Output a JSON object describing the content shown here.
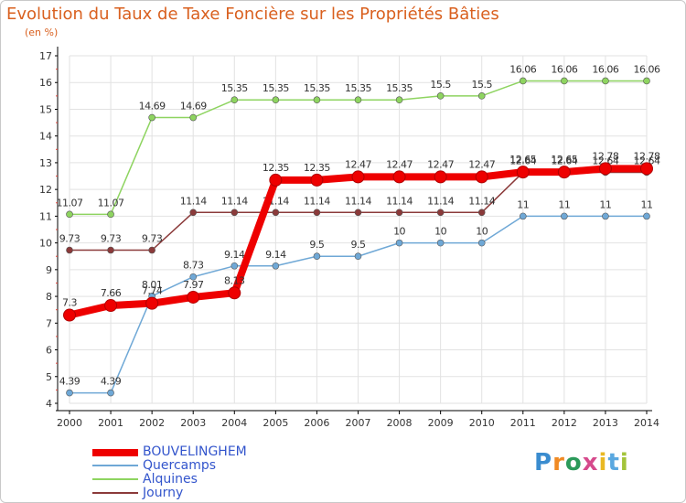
{
  "title": "Evolution du Taux de Taxe Foncière sur les Propriétés Bâties",
  "unit_label": "(en %)",
  "chart_data": {
    "type": "line",
    "title": "Evolution du Taux de Taxe Foncière sur les Propriétés Bâties",
    "ylabel": "(en %)",
    "xlabel": "",
    "ylim": [
      4,
      17
    ],
    "yticks": [
      "4",
      "5",
      "6",
      "7",
      "8",
      "9",
      "10",
      "11",
      "12",
      "13",
      "14",
      "15",
      "16",
      "17"
    ],
    "categories": [
      "2000",
      "2001",
      "2002",
      "2003",
      "2004",
      "2005",
      "2006",
      "2007",
      "2008",
      "2009",
      "2010",
      "2011",
      "2012",
      "2013",
      "2014"
    ],
    "grid": true,
    "series": [
      {
        "name": "Alquines",
        "color": "#8ed460",
        "values": [
          11.07,
          11.07,
          14.69,
          14.69,
          15.35,
          15.35,
          15.35,
          15.35,
          15.35,
          15.5,
          15.5,
          16.06,
          16.06,
          16.06,
          16.06
        ],
        "labels": [
          "11.07",
          "11.07",
          "14.69",
          "14.69",
          "15.35",
          "15.35",
          "15.35",
          "15.35",
          "15.35",
          "15.5",
          "15.5",
          "16.06",
          "16.06",
          "16.06",
          "16.06"
        ]
      },
      {
        "name": "Quercamps",
        "color": "#6fa8d6",
        "values": [
          4.39,
          4.39,
          8.01,
          8.73,
          9.14,
          9.14,
          9.5,
          9.5,
          10,
          10,
          10,
          11,
          11,
          11,
          11
        ],
        "labels": [
          "4.39",
          "4.39",
          "8.01",
          "8.73",
          "9.14",
          "9.14",
          "9.5",
          "9.5",
          "10",
          "10",
          "10",
          "11",
          "11",
          "11",
          "11"
        ]
      },
      {
        "name": "Journy",
        "color": "#8b3a3a",
        "values": [
          9.73,
          9.73,
          9.73,
          11.14,
          11.14,
          11.14,
          11.14,
          11.14,
          11.14,
          11.14,
          11.14,
          12.64,
          12.64,
          12.64,
          12.64
        ],
        "labels": [
          "9.73",
          "9.73",
          "9.73",
          "11.14",
          "11.14",
          "11.14",
          "11.14",
          "11.14",
          "11.14",
          "11.14",
          "11.14",
          "12.64",
          "12.64",
          "12.64",
          "12.64"
        ]
      },
      {
        "name": "BOUVELINGHEM",
        "color": "#ee0000",
        "values": [
          7.3,
          7.66,
          7.74,
          7.97,
          8.13,
          12.35,
          12.35,
          12.47,
          12.47,
          12.47,
          12.47,
          12.65,
          12.65,
          12.78,
          12.78
        ],
        "labels": [
          "7.3",
          "7.66",
          "7.74",
          "7.97",
          "8.13",
          "12.35",
          "12.35",
          "12.47",
          "12.47",
          "12.47",
          "12.47",
          "12.65",
          "12.65",
          "12.78",
          "12.78"
        ]
      }
    ],
    "legend": [
      "BOUVELINGHEM",
      "Quercamps",
      "Alquines",
      "Journy"
    ]
  },
  "logo": {
    "text": "Proxiti"
  }
}
